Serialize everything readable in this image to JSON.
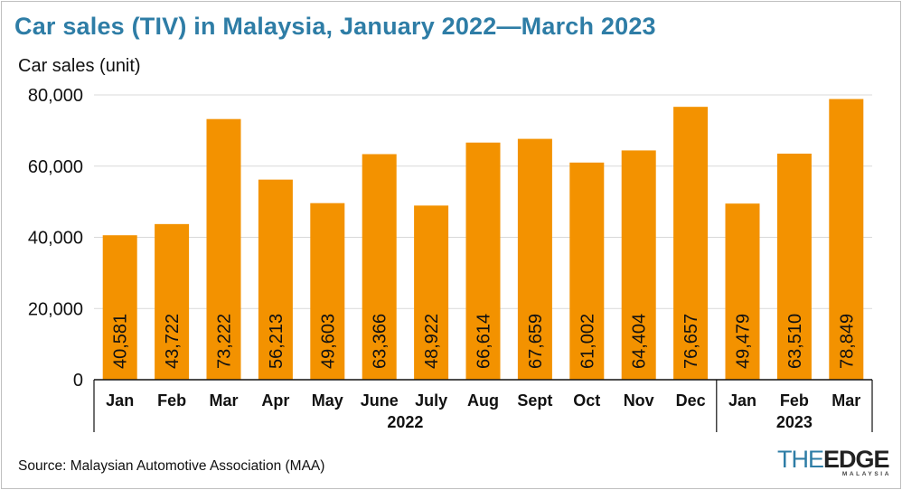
{
  "title": "Car sales (TIV) in Malaysia, January 2022—March 2023",
  "source": "Source: Malaysian Automotive Association (MAA)",
  "logo": {
    "the": "THE",
    "edge": "EDGE",
    "sub": "MALAYSIA"
  },
  "colors": {
    "bar": "#f39200",
    "title": "#2e7da6",
    "grid": "#d9d9d9",
    "axis": "#111111"
  },
  "chart_data": {
    "type": "bar",
    "title": "Car sales (TIV) in Malaysia, January 2022—March 2023",
    "ylabel": "Car sales (unit)",
    "xlabel": "",
    "ylim": [
      0,
      80000
    ],
    "yticks": [
      0,
      20000,
      40000,
      60000,
      80000
    ],
    "ytick_labels": [
      "0",
      "20,000",
      "40,000",
      "60,000",
      "80,000"
    ],
    "grid": true,
    "categories": [
      "Jan",
      "Feb",
      "Mar",
      "Apr",
      "May",
      "June",
      "July",
      "Aug",
      "Sept",
      "Oct",
      "Nov",
      "Dec",
      "Jan",
      "Feb",
      "Mar"
    ],
    "values": [
      40581,
      43722,
      73222,
      56213,
      49603,
      63366,
      48922,
      66614,
      67659,
      61002,
      64404,
      76657,
      49479,
      63510,
      78849
    ],
    "data_labels": [
      "40,581",
      "43,722",
      "73,222",
      "56,213",
      "49,603",
      "63,366",
      "48,922",
      "66,614",
      "67,659",
      "61,002",
      "64,404",
      "76,657",
      "49,479",
      "63,510",
      "78,849"
    ],
    "groups": [
      {
        "label": "2022",
        "start": 0,
        "end": 11
      },
      {
        "label": "2023",
        "start": 12,
        "end": 14
      }
    ]
  }
}
